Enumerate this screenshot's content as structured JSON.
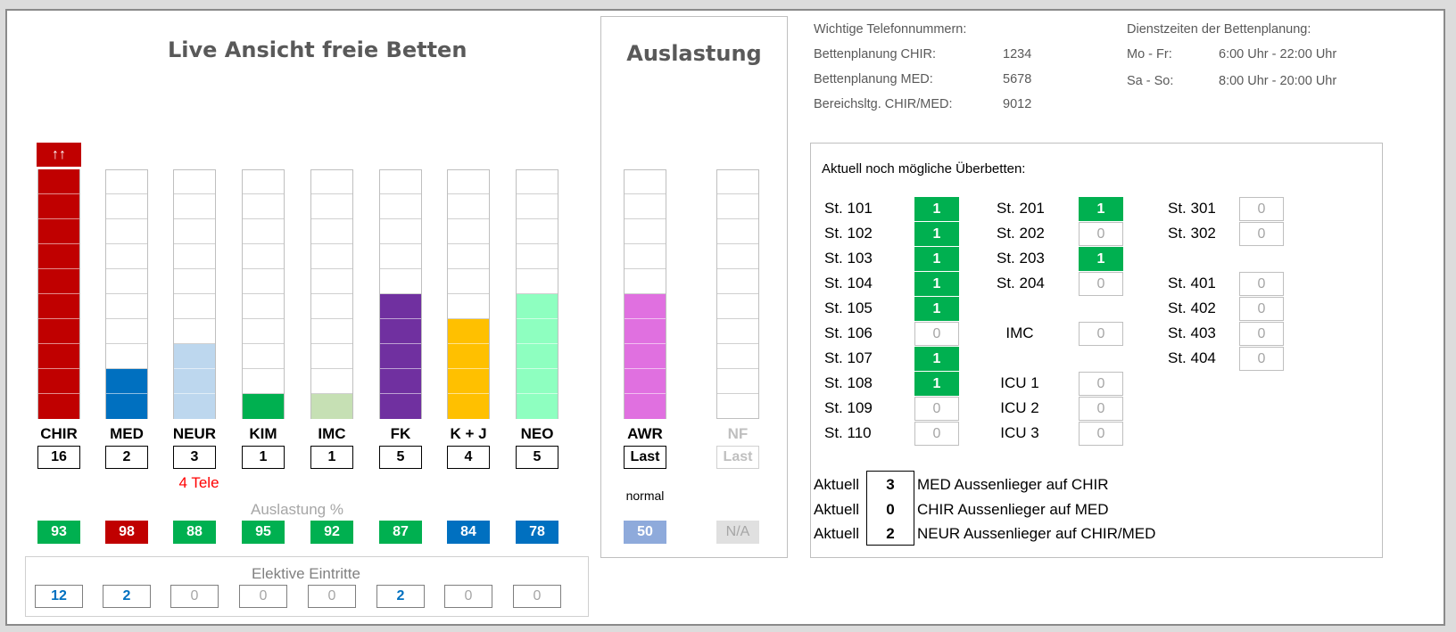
{
  "left_panel": {
    "title": "Live Ansicht freie Betten",
    "overflow_indicator": "↑↑",
    "stations": [
      {
        "name": "CHIR",
        "free": "16",
        "filled_cells": 10,
        "color": "#c00000",
        "util": "93",
        "util_color": "#00b050",
        "elective": "12",
        "elective_active": true
      },
      {
        "name": "MED",
        "free": "2",
        "filled_cells": 2,
        "color": "#0070c0",
        "util": "98",
        "util_color": "#c00000",
        "elective": "2",
        "elective_active": true
      },
      {
        "name": "NEUR",
        "free": "3",
        "filled_cells": 3,
        "color": "#bdd7ee",
        "util": "88",
        "util_color": "#00b050",
        "elective": "0",
        "elective_active": false
      },
      {
        "name": "KIM",
        "free": "1",
        "filled_cells": 1,
        "color": "#00b050",
        "util": "95",
        "util_color": "#00b050",
        "elective": "0",
        "elective_active": false
      },
      {
        "name": "IMC",
        "free": "1",
        "filled_cells": 1,
        "color": "#c6e0b4",
        "util": "92",
        "util_color": "#00b050",
        "elective": "0",
        "elective_active": false
      },
      {
        "name": "FK",
        "free": "5",
        "filled_cells": 5,
        "color": "#7030a0",
        "util": "87",
        "util_color": "#00b050",
        "elective": "2",
        "elective_active": true
      },
      {
        "name": "K + J",
        "free": "4",
        "filled_cells": 4,
        "color": "#ffc000",
        "util": "84",
        "util_color": "#0070c0",
        "elective": "0",
        "elective_active": false
      },
      {
        "name": "NEO",
        "free": "5",
        "filled_cells": 5,
        "color": "#8effc0",
        "util": "78",
        "util_color": "#0070c0",
        "elective": "0",
        "elective_active": false
      }
    ],
    "neur_note": "4 Tele",
    "util_heading": "Auslastung %",
    "elective_heading": "Elektive Eintritte"
  },
  "middle_panel": {
    "title": "Auslastung",
    "awr": {
      "name": "AWR",
      "value": "Last",
      "filled_cells": 5,
      "color": "#e070e0",
      "status": "normal",
      "util": "50"
    },
    "nf": {
      "name": "NF",
      "value": "Last",
      "filled_cells": 0,
      "util": "N/A"
    }
  },
  "phones": {
    "heading": "Wichtige Telefonnummern:",
    "entries": [
      {
        "label": "Bettenplanung CHIR:",
        "number": "1234"
      },
      {
        "label": "Bettenplanung MED:",
        "number": "5678"
      },
      {
        "label": "Bereichsltg. CHIR/MED:",
        "number": "9012"
      }
    ]
  },
  "hours": {
    "heading": "Dienstzeiten der Bettenplanung:",
    "entries": [
      {
        "days": "Mo - Fr:",
        "time": "6:00 Uhr - 22:00 Uhr"
      },
      {
        "days": "Sa - So:",
        "time": "8:00 Uhr - 20:00 Uhr"
      }
    ]
  },
  "overbeds": {
    "heading": "Aktuell noch mögliche Überbetten:",
    "col1": [
      {
        "label": "St. 101",
        "value": "1"
      },
      {
        "label": "St. 102",
        "value": "1"
      },
      {
        "label": "St. 103",
        "value": "1"
      },
      {
        "label": "St. 104",
        "value": "1"
      },
      {
        "label": "St. 105",
        "value": "1"
      },
      {
        "label": "St. 106",
        "value": "0"
      },
      {
        "label": "St. 107",
        "value": "1"
      },
      {
        "label": "St. 108",
        "value": "1"
      },
      {
        "label": "St. 109",
        "value": "0"
      },
      {
        "label": "St. 110",
        "value": "0"
      }
    ],
    "col2": [
      {
        "label": "St. 201",
        "value": "1"
      },
      {
        "label": "St. 202",
        "value": "0"
      },
      {
        "label": "St. 203",
        "value": "1"
      },
      {
        "label": "St. 204",
        "value": "0"
      },
      {
        "label": "IMC",
        "value": "0"
      },
      {
        "label": "ICU 1",
        "value": "0"
      },
      {
        "label": "ICU 2",
        "value": "0"
      },
      {
        "label": "ICU 3",
        "value": "0"
      }
    ],
    "col3": [
      {
        "label": "St. 301",
        "value": "0"
      },
      {
        "label": "St. 302",
        "value": "0"
      },
      {
        "label": "St. 401",
        "value": "0"
      },
      {
        "label": "St. 402",
        "value": "0"
      },
      {
        "label": "St. 403",
        "value": "0"
      },
      {
        "label": "St. 404",
        "value": "0"
      }
    ]
  },
  "outliers": [
    {
      "prefix": "Aktuell",
      "value": "3",
      "text": "MED Aussenlieger auf CHIR"
    },
    {
      "prefix": "Aktuell",
      "value": "0",
      "text": "CHIR Aussenlieger auf MED"
    },
    {
      "prefix": "Aktuell",
      "value": "2",
      "text": "NEUR Aussenlieger auf CHIR/MED"
    }
  ]
}
